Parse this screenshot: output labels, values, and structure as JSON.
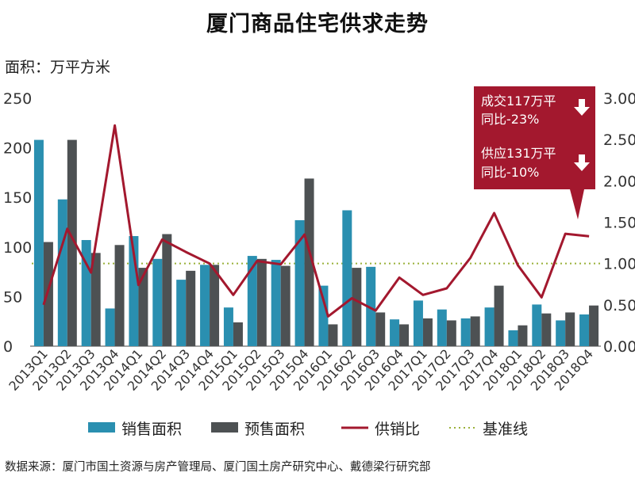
{
  "title": "厦门商品住宅供求走势",
  "unit_label": "面积：万平方米",
  "source": "数据来源：厦门市国土资源与房产管理局、厦门国土房产研究中心、戴德梁行研究部",
  "annotation": {
    "line1": "成交117万平",
    "line2": "同比-23%",
    "line3": "供应131万平",
    "line4": "同比-10%"
  },
  "colors": {
    "sales": "#2a8fb0",
    "presale": "#4d5153",
    "ratio": "#a3182e",
    "baseline": "#9ab13a",
    "callout": "#a3182e"
  },
  "chart_data": {
    "type": "bar",
    "categories": [
      "2013Q1",
      "2013Q2",
      "2013Q3",
      "2013Q4",
      "2014Q1",
      "2014Q2",
      "2014Q3",
      "2014Q4",
      "2015Q1",
      "2015Q2",
      "2015Q3",
      "2015Q4",
      "2016Q1",
      "2016Q2",
      "2016Q3",
      "2016Q4",
      "2017Q1",
      "2017Q2",
      "2017Q3",
      "2017Q4",
      "2018Q1",
      "2018Q2",
      "2018Q3",
      "2018Q4"
    ],
    "series": [
      {
        "name": "销售面积",
        "type": "bar",
        "axis": "left",
        "values": [
          208,
          148,
          107,
          38,
          111,
          88,
          67,
          82,
          39,
          91,
          87,
          127,
          61,
          137,
          80,
          27,
          46,
          37,
          28,
          39,
          16,
          42,
          26,
          32
        ]
      },
      {
        "name": "预售面积",
        "type": "bar",
        "axis": "left",
        "values": [
          105,
          208,
          94,
          102,
          79,
          113,
          76,
          82,
          24,
          88,
          81,
          169,
          22,
          79,
          34,
          22,
          28,
          26,
          30,
          61,
          21,
          33,
          34,
          41
        ]
      },
      {
        "name": "供销比",
        "type": "line",
        "axis": "right",
        "values": [
          0.5,
          1.42,
          0.89,
          2.67,
          0.74,
          1.29,
          1.14,
          1.0,
          0.62,
          1.03,
          0.99,
          1.35,
          0.36,
          0.58,
          0.43,
          0.83,
          0.62,
          0.7,
          1.07,
          1.61,
          0.98,
          0.59,
          1.36,
          1.33
        ]
      },
      {
        "name": "基准线",
        "type": "line",
        "axis": "right",
        "style": "dotted",
        "values": [
          1.0,
          1.0,
          1.0,
          1.0,
          1.0,
          1.0,
          1.0,
          1.0,
          1.0,
          1.0,
          1.0,
          1.0,
          1.0,
          1.0,
          1.0,
          1.0,
          1.0,
          1.0,
          1.0,
          1.0,
          1.0,
          1.0,
          1.0,
          1.0
        ]
      }
    ],
    "left_axis": {
      "ylim": [
        0,
        250
      ],
      "ticks": [
        "0",
        "50",
        "100",
        "150",
        "200",
        "250"
      ]
    },
    "right_axis": {
      "ylim": [
        0,
        3
      ],
      "ticks": [
        "0.00",
        "0.50",
        "1.00",
        "1.50",
        "2.00",
        "2.50",
        "3.00"
      ]
    },
    "legend_position": "bottom",
    "grid": false
  }
}
